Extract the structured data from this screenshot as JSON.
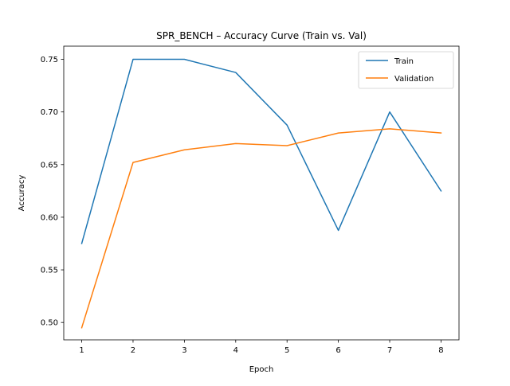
{
  "chart_data": {
    "type": "line",
    "title": "SPR_BENCH – Accuracy Curve (Train vs. Val)",
    "xlabel": "Epoch",
    "ylabel": "Accuracy",
    "x": [
      1,
      2,
      3,
      4,
      5,
      6,
      7,
      8
    ],
    "xticks": [
      "1",
      "2",
      "3",
      "4",
      "5",
      "6",
      "7",
      "8"
    ],
    "yticks": [
      "0.50",
      "0.55",
      "0.60",
      "0.65",
      "0.70",
      "0.75"
    ],
    "ytick_values": [
      0.5,
      0.55,
      0.6,
      0.65,
      0.7,
      0.75
    ],
    "xlim": [
      0.65,
      8.35
    ],
    "ylim": [
      0.4835,
      0.7625
    ],
    "grid": false,
    "legend_position": "top-right",
    "series": [
      {
        "name": "Train",
        "color": "#1f77b4",
        "values": [
          0.575,
          0.75,
          0.75,
          0.7375,
          0.6875,
          0.5875,
          0.7,
          0.625
        ]
      },
      {
        "name": "Validation",
        "color": "#ff7f0e",
        "values": [
          0.495,
          0.652,
          0.664,
          0.67,
          0.668,
          0.68,
          0.684,
          0.68
        ]
      }
    ]
  }
}
